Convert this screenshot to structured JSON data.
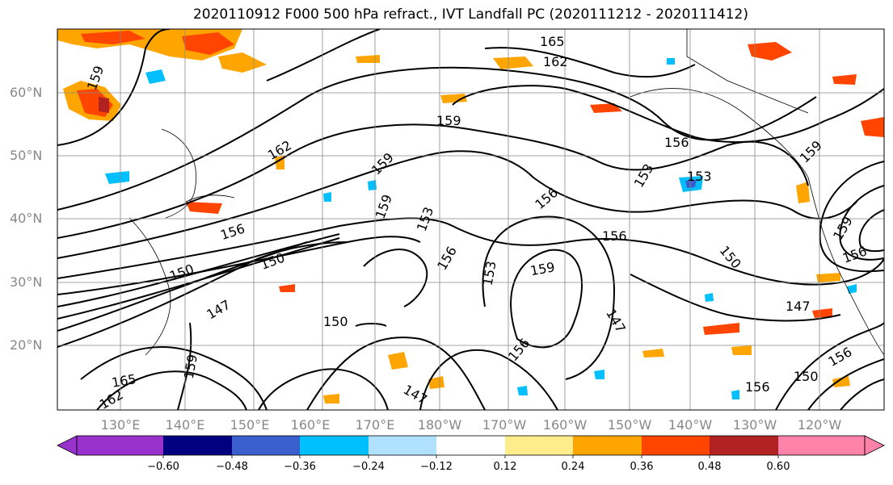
{
  "title": "2020110912 F000 500 hPa refract., IVT Landfall PC (2020111212 - 2020111412)",
  "lat_labels": [
    "60°N",
    "50°N",
    "40°N",
    "30°N",
    "20°N"
  ],
  "lon_labels": [
    "130°E",
    "140°E",
    "150°E",
    "160°E",
    "170°E",
    "180°W",
    "170°W",
    "160°W",
    "150°W",
    "140°W",
    "130°W",
    "120°W"
  ],
  "contour_labels": [
    "165",
    "162",
    "159",
    "159",
    "162",
    "159",
    "156",
    "153",
    "159",
    "156",
    "153",
    "156",
    "159",
    "156",
    "153",
    "150",
    "159",
    "159",
    "156",
    "150",
    "147",
    "147",
    "150",
    "147",
    "156",
    "150",
    "156",
    "165",
    "162",
    "159",
    "147",
    "153",
    "156",
    "150",
    "156"
  ],
  "colorbar": {
    "ticks": [
      "−0.60",
      "−0.48",
      "−0.36",
      "−0.24",
      "−0.12",
      "0.12",
      "0.24",
      "0.36",
      "0.48",
      "0.60"
    ],
    "colors": [
      "#9932cc",
      "#000080",
      "#3a5fcd",
      "#00bfff",
      "#b0e2ff",
      "#ffffff",
      "#ffec8b",
      "#ffa500",
      "#ff4500",
      "#b22222",
      "#ff82ab"
    ]
  }
}
